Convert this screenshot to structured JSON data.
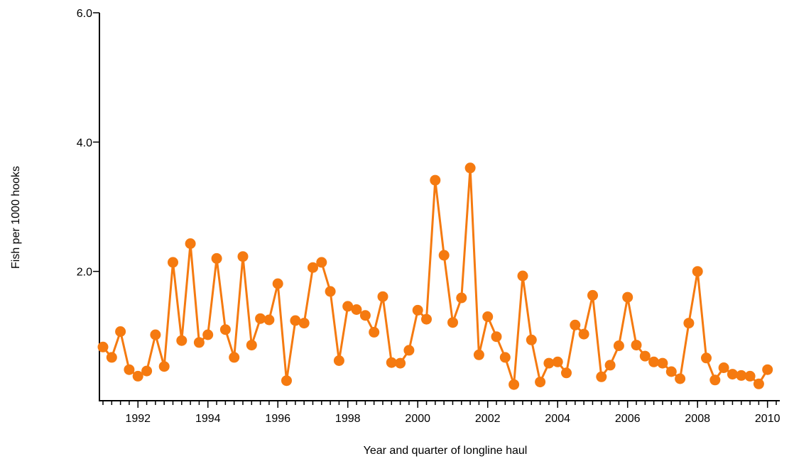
{
  "chart_data": {
    "type": "line",
    "title": "",
    "xlabel": "Year and quarter of longline haul",
    "ylabel": "Fish per 1000 hooks",
    "xlim": [
      1991.0,
      2010.25
    ],
    "ylim": [
      0.0,
      6.0
    ],
    "grid": false,
    "legend": "none",
    "x_ticks": [
      1992,
      1994,
      1996,
      1998,
      2000,
      2002,
      2004,
      2006,
      2008,
      2010
    ],
    "x_tick_labels": [
      "1992",
      "1994",
      "1996",
      "1998",
      "2000",
      "2002",
      "2004",
      "2006",
      "2008",
      "2010"
    ],
    "y_ticks": [
      2.0,
      4.0,
      6.0
    ],
    "y_tick_labels": [
      "2.0",
      "4.0",
      "6.0"
    ],
    "color": "#f57a10",
    "series": [
      {
        "x": [
          1991.0,
          1991.25,
          1991.5,
          1991.75,
          1992.0,
          1992.25,
          1992.5,
          1992.75,
          1993.0,
          1993.25,
          1993.5,
          1993.75,
          1994.0,
          1994.25,
          1994.5,
          1994.75,
          1995.0,
          1995.25,
          1995.5,
          1995.75,
          1996.0,
          1996.25,
          1996.5,
          1996.75,
          1997.0,
          1997.25,
          1997.5,
          1997.75,
          1998.0,
          1998.25,
          1998.5,
          1998.75,
          1999.0,
          1999.25,
          1999.5,
          1999.75,
          2000.0,
          2000.25,
          2000.5,
          2000.75,
          2001.0,
          2001.25,
          2001.5,
          2001.75,
          2002.0,
          2002.25,
          2002.5,
          2002.75,
          2003.0,
          2003.25,
          2003.5,
          2003.75,
          2004.0,
          2004.25,
          2004.5,
          2004.75,
          2005.0,
          2005.25,
          2005.5,
          2005.75,
          2006.0,
          2006.25,
          2006.5,
          2006.75,
          2007.0,
          2007.25,
          2007.5,
          2007.75,
          2008.0,
          2008.25,
          2008.5,
          2008.75,
          2009.0,
          2009.25,
          2009.5,
          2009.75,
          2010.0
        ],
        "y": [
          0.83,
          0.67,
          1.07,
          0.48,
          0.38,
          0.46,
          1.02,
          0.53,
          2.14,
          0.93,
          2.43,
          0.9,
          1.02,
          2.2,
          1.1,
          0.67,
          2.23,
          0.86,
          1.27,
          1.25,
          1.81,
          0.31,
          1.24,
          1.2,
          2.06,
          2.14,
          1.69,
          0.62,
          1.46,
          1.41,
          1.32,
          1.06,
          1.61,
          0.59,
          0.58,
          0.78,
          1.4,
          1.26,
          3.41,
          2.25,
          1.21,
          1.59,
          3.6,
          0.71,
          1.3,
          0.99,
          0.67,
          0.25,
          1.93,
          0.94,
          0.29,
          0.58,
          0.6,
          0.43,
          1.17,
          1.03,
          1.63,
          0.37,
          0.55,
          0.85,
          1.6,
          0.86,
          0.69,
          0.6,
          0.58,
          0.45,
          0.34,
          1.2,
          2.0,
          0.66,
          0.32,
          0.51,
          0.41,
          0.39,
          0.38,
          0.26,
          0.48
        ]
      }
    ]
  }
}
